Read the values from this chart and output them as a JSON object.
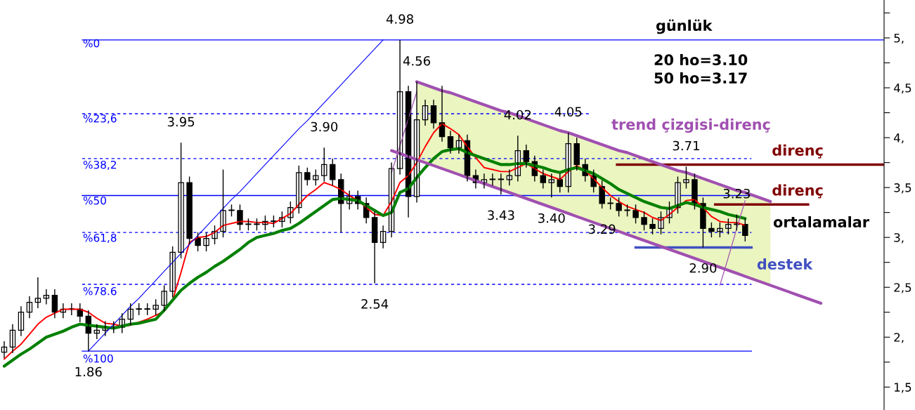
{
  "chart_data": {
    "type": "candlestick",
    "title": "günlük",
    "categories": [
      null,
      null,
      null,
      null,
      null,
      null,
      null,
      null,
      null,
      null,
      null,
      null,
      null,
      null,
      null,
      null,
      null,
      null,
      null,
      null,
      null,
      null,
      null,
      null,
      null,
      null,
      null,
      null,
      null,
      null,
      null,
      null,
      null,
      null,
      null,
      null,
      null,
      null,
      null,
      null,
      null,
      null,
      null,
      null,
      null,
      null,
      null,
      null,
      null,
      null,
      null,
      null,
      null,
      null,
      null,
      null,
      null,
      null,
      null,
      null,
      null,
      null,
      null,
      null,
      null,
      null,
      null,
      null,
      null,
      null,
      null,
      null,
      null,
      null,
      null,
      null,
      null,
      null,
      null,
      null,
      null,
      null,
      null,
      null,
      null,
      null,
      null,
      null,
      null,
      null,
      null,
      null,
      null,
      null,
      null,
      null,
      null,
      null,
      null,
      null,
      null,
      null,
      null,
      null,
      null
    ],
    "ohlc": [
      [
        1.85,
        1.96,
        1.79,
        1.9
      ],
      [
        1.9,
        2.13,
        1.84,
        2.07
      ],
      [
        2.07,
        2.31,
        2.01,
        2.25
      ],
      [
        2.25,
        2.41,
        2.19,
        2.35
      ],
      [
        2.35,
        2.6,
        2.29,
        2.39
      ],
      [
        2.39,
        2.48,
        2.33,
        2.42
      ],
      [
        2.42,
        2.48,
        2.19,
        2.25
      ],
      [
        2.25,
        2.34,
        2.19,
        2.28
      ],
      [
        2.28,
        2.34,
        2.22,
        2.28
      ],
      [
        2.28,
        2.34,
        2.15,
        2.21
      ],
      [
        2.21,
        2.27,
        1.86,
        2.04
      ],
      [
        2.04,
        2.13,
        1.98,
        2.07
      ],
      [
        2.07,
        2.16,
        2.01,
        2.1
      ],
      [
        2.1,
        2.16,
        2.04,
        2.1
      ],
      [
        2.1,
        2.24,
        2.04,
        2.18
      ],
      [
        2.18,
        2.34,
        2.12,
        2.28
      ],
      [
        2.28,
        2.34,
        2.22,
        2.28
      ],
      [
        2.28,
        2.34,
        2.22,
        2.28
      ],
      [
        2.28,
        2.38,
        2.22,
        2.32
      ],
      [
        2.32,
        2.52,
        2.26,
        2.46
      ],
      [
        2.46,
        2.91,
        2.4,
        2.85
      ],
      [
        2.85,
        3.95,
        2.79,
        3.55
      ],
      [
        3.55,
        3.61,
        2.93,
        2.99
      ],
      [
        2.99,
        3.05,
        2.86,
        2.92
      ],
      [
        2.92,
        3.05,
        2.86,
        2.99
      ],
      [
        2.99,
        3.12,
        2.93,
        3.06
      ],
      [
        3.06,
        3.68,
        3.0,
        3.27
      ],
      [
        3.27,
        3.33,
        3.21,
        3.27
      ],
      [
        3.27,
        3.33,
        3.07,
        3.13
      ],
      [
        3.13,
        3.19,
        3.07,
        3.13
      ],
      [
        3.13,
        3.19,
        3.07,
        3.13
      ],
      [
        3.13,
        3.22,
        3.07,
        3.16
      ],
      [
        3.16,
        3.22,
        3.1,
        3.16
      ],
      [
        3.16,
        3.26,
        3.1,
        3.2
      ],
      [
        3.2,
        3.36,
        3.14,
        3.3
      ],
      [
        3.3,
        3.72,
        3.24,
        3.65
      ],
      [
        3.65,
        3.7,
        3.52,
        3.58
      ],
      [
        3.58,
        3.68,
        3.52,
        3.62
      ],
      [
        3.62,
        3.9,
        3.56,
        3.73
      ],
      [
        3.73,
        3.79,
        3.52,
        3.58
      ],
      [
        3.58,
        3.64,
        3.05,
        3.34
      ],
      [
        3.34,
        3.47,
        3.28,
        3.41
      ],
      [
        3.41,
        3.47,
        3.28,
        3.34
      ],
      [
        3.34,
        3.4,
        3.14,
        3.2
      ],
      [
        3.2,
        3.26,
        2.54,
        2.95
      ],
      [
        2.95,
        3.12,
        2.89,
        3.06
      ],
      [
        3.06,
        3.75,
        3.0,
        3.69
      ],
      [
        3.69,
        4.98,
        3.63,
        4.46
      ],
      [
        4.46,
        4.52,
        3.2,
        3.41
      ],
      [
        3.41,
        4.56,
        3.35,
        4.18
      ],
      [
        4.18,
        4.38,
        4.12,
        4.32
      ],
      [
        4.32,
        4.38,
        4.09,
        4.15
      ],
      [
        4.15,
        4.52,
        3.96,
        4.01
      ],
      [
        4.01,
        4.07,
        3.84,
        3.9
      ],
      [
        3.9,
        4.03,
        3.84,
        3.97
      ],
      [
        3.97,
        4.03,
        3.56,
        3.62
      ],
      [
        3.62,
        3.68,
        3.49,
        3.55
      ],
      [
        3.55,
        3.64,
        3.49,
        3.58
      ],
      [
        3.58,
        3.64,
        3.52,
        3.58
      ],
      [
        3.58,
        3.64,
        3.43,
        3.58
      ],
      [
        3.58,
        3.68,
        3.52,
        3.62
      ],
      [
        3.62,
        4.02,
        3.56,
        3.87
      ],
      [
        3.87,
        3.93,
        3.7,
        3.76
      ],
      [
        3.76,
        3.82,
        3.56,
        3.62
      ],
      [
        3.62,
        3.68,
        3.49,
        3.55
      ],
      [
        3.55,
        3.64,
        3.4,
        3.58
      ],
      [
        3.58,
        3.64,
        3.45,
        3.51
      ],
      [
        3.51,
        4.05,
        3.45,
        3.94
      ],
      [
        3.94,
        4.0,
        3.67,
        3.73
      ],
      [
        3.73,
        3.79,
        3.56,
        3.62
      ],
      [
        3.62,
        3.68,
        3.45,
        3.51
      ],
      [
        3.51,
        3.57,
        3.29,
        3.34
      ],
      [
        3.34,
        3.4,
        3.28,
        3.34
      ],
      [
        3.34,
        3.4,
        3.21,
        3.27
      ],
      [
        3.27,
        3.33,
        3.21,
        3.27
      ],
      [
        3.27,
        3.33,
        3.14,
        3.2
      ],
      [
        3.2,
        3.26,
        3.07,
        3.13
      ],
      [
        3.13,
        3.19,
        3.03,
        3.09
      ],
      [
        3.09,
        3.26,
        3.03,
        3.2
      ],
      [
        3.2,
        3.36,
        3.14,
        3.3
      ],
      [
        3.3,
        3.61,
        3.24,
        3.55
      ],
      [
        3.55,
        3.71,
        3.49,
        3.58
      ],
      [
        3.58,
        3.64,
        3.28,
        3.34
      ],
      [
        3.34,
        3.4,
        2.9,
        3.09
      ],
      [
        3.09,
        3.15,
        3.0,
        3.06
      ],
      [
        3.06,
        3.15,
        3.0,
        3.09
      ],
      [
        3.09,
        3.19,
        3.03,
        3.13
      ],
      [
        3.13,
        3.23,
        3.07,
        3.13
      ],
      [
        3.13,
        3.19,
        2.96,
        3.02
      ],
      null,
      null,
      null,
      null,
      null,
      null,
      null,
      null,
      null,
      null,
      null,
      null,
      null,
      null,
      null,
      null
    ],
    "ylim": [
      1.27,
      5.38
    ],
    "yticks": [
      {
        "value": 1.5,
        "label": "1,5"
      },
      {
        "value": 1.75,
        "label": null
      },
      {
        "value": 2,
        "label": "2,"
      },
      {
        "value": 2.25,
        "label": null
      },
      {
        "value": 2.5,
        "label": "2,5"
      },
      {
        "value": 2.75,
        "label": null
      },
      {
        "value": 3,
        "label": "3,"
      },
      {
        "value": 3.25,
        "label": null
      },
      {
        "value": 3.5,
        "label": "3,5"
      },
      {
        "value": 3.75,
        "label": null
      },
      {
        "value": 4,
        "label": "4,"
      },
      {
        "value": 4.25,
        "label": null
      },
      {
        "value": 4.5,
        "label": "4,5"
      },
      {
        "value": 4.75,
        "label": null
      },
      {
        "value": 5,
        "label": "5,"
      },
      {
        "value": 5.25,
        "label": null
      }
    ],
    "tick_labels": "y",
    "series": [
      {
        "type": "area",
        "color": "#eaf5c0",
        "values": [
          null,
          null,
          null,
          null,
          null,
          null,
          null,
          null,
          null,
          null,
          null,
          null,
          null,
          null,
          null,
          null,
          null,
          null,
          null,
          null,
          null,
          null,
          null,
          null,
          null,
          null,
          null,
          null,
          null,
          null,
          null,
          null,
          null,
          null,
          null,
          null,
          null,
          null,
          null,
          null,
          null,
          null,
          null,
          null,
          null,
          null,
          null,
          null,
          null,
          4.56,
          4.53,
          4.5,
          4.47,
          4.45,
          4.42,
          4.39,
          4.36,
          4.33,
          4.3,
          4.27,
          4.25,
          4.22,
          4.19,
          4.16,
          4.13,
          4.1,
          4.07,
          4.05,
          4.02,
          3.99,
          3.96,
          3.93,
          3.9,
          3.87,
          3.85,
          3.82,
          3.79,
          3.76,
          3.73,
          3.7,
          3.67,
          3.65,
          3.62,
          3.59,
          3.56,
          3.53,
          3.5,
          3.47,
          3.45,
          3.42,
          3.39,
          3.36,
          null,
          null,
          null,
          null,
          null,
          null,
          null,
          null,
          null,
          null,
          null,
          null,
          null
        ]
      },
      {
        "type": "line",
        "color": "#ff0000",
        "values": [
          1.78,
          1.86,
          1.93,
          2.03,
          2.13,
          2.2,
          2.24,
          2.28,
          2.28,
          2.28,
          2.25,
          2.19,
          2.14,
          2.13,
          2.11,
          2.12,
          2.15,
          2.18,
          2.22,
          2.26,
          2.37,
          2.65,
          2.95,
          3.0,
          3.01,
          3.05,
          3.12,
          3.14,
          3.16,
          3.16,
          3.15,
          3.15,
          3.14,
          3.19,
          3.24,
          3.33,
          3.42,
          3.48,
          3.55,
          3.52,
          3.48,
          3.42,
          3.37,
          3.3,
          3.23,
          3.22,
          3.36,
          3.55,
          3.62,
          3.75,
          3.91,
          4.05,
          4.14,
          4.09,
          4.03,
          3.91,
          3.8,
          3.7,
          3.68,
          3.66,
          3.66,
          3.7,
          3.74,
          3.69,
          3.64,
          3.61,
          3.58,
          3.66,
          3.72,
          3.67,
          3.59,
          3.5,
          3.42,
          3.36,
          3.31,
          3.28,
          3.25,
          3.2,
          3.17,
          3.23,
          3.3,
          3.37,
          3.38,
          3.3,
          3.21,
          3.16,
          3.15,
          3.15,
          3.12,
          null,
          null,
          null,
          null,
          null,
          null,
          null,
          null,
          null,
          null,
          null,
          null,
          null,
          null,
          null,
          null
        ]
      },
      {
        "type": "line",
        "color": "#008000",
        "values": [
          1.71,
          1.77,
          1.83,
          1.88,
          1.94,
          2.0,
          2.03,
          2.06,
          2.1,
          2.13,
          2.12,
          2.11,
          2.1,
          2.09,
          2.11,
          2.13,
          2.14,
          2.16,
          2.18,
          2.27,
          2.37,
          2.47,
          2.54,
          2.6,
          2.65,
          2.71,
          2.76,
          2.82,
          2.88,
          2.95,
          3.0,
          3.02,
          3.04,
          3.07,
          3.09,
          3.14,
          3.2,
          3.26,
          3.32,
          3.38,
          3.39,
          3.38,
          3.37,
          3.32,
          3.27,
          3.22,
          3.25,
          3.45,
          3.49,
          3.6,
          3.7,
          3.79,
          3.86,
          3.88,
          3.89,
          3.85,
          3.82,
          3.79,
          3.76,
          3.73,
          3.73,
          3.74,
          3.74,
          3.72,
          3.7,
          3.67,
          3.65,
          3.68,
          3.7,
          3.67,
          3.64,
          3.59,
          3.54,
          3.48,
          3.44,
          3.4,
          3.36,
          3.33,
          3.3,
          3.29,
          3.32,
          3.35,
          3.33,
          3.3,
          3.28,
          3.26,
          3.23,
          3.21,
          3.19,
          null,
          null,
          null,
          null,
          null,
          null,
          null,
          null,
          null,
          null,
          null,
          null,
          null,
          null,
          null,
          null
        ]
      },
      {
        "type": "line",
        "color": "#a050b0",
        "values": [
          null,
          null,
          null,
          null,
          null,
          null,
          null,
          null,
          null,
          null,
          null,
          null,
          null,
          null,
          null,
          null,
          null,
          null,
          null,
          null,
          null,
          null,
          null,
          null,
          null,
          null,
          null,
          null,
          null,
          null,
          null,
          null,
          null,
          null,
          null,
          null,
          null,
          null,
          null,
          null,
          null,
          null,
          null,
          null,
          null,
          null,
          null,
          null,
          null,
          4.56,
          4.53,
          4.5,
          4.47,
          4.45,
          4.42,
          4.39,
          4.36,
          4.33,
          4.3,
          4.27,
          4.25,
          4.22,
          4.19,
          4.16,
          4.13,
          4.1,
          4.07,
          4.05,
          4.02,
          3.99,
          3.96,
          3.93,
          3.9,
          3.87,
          3.85,
          3.82,
          3.79,
          3.76,
          3.73,
          3.7,
          3.67,
          3.65,
          3.62,
          3.59,
          3.56,
          3.53,
          3.5,
          3.47,
          3.45,
          3.42,
          3.39,
          3.36,
          null,
          null,
          null,
          null,
          null,
          null,
          null,
          null,
          null,
          null,
          null,
          null,
          null
        ]
      },
      {
        "type": "line",
        "color": "#a050b0",
        "values": [
          null,
          null,
          null,
          null,
          null,
          null,
          null,
          null,
          null,
          null,
          null,
          null,
          null,
          null,
          null,
          null,
          null,
          null,
          null,
          null,
          null,
          null,
          null,
          null,
          null,
          null,
          null,
          null,
          null,
          null,
          null,
          null,
          null,
          null,
          null,
          null,
          null,
          null,
          null,
          null,
          null,
          null,
          null,
          null,
          null,
          null,
          3.87,
          3.84,
          3.81,
          3.78,
          3.75,
          3.72,
          3.69,
          3.66,
          3.63,
          3.6,
          3.57,
          3.54,
          3.51,
          3.48,
          3.45,
          3.42,
          3.39,
          3.36,
          3.33,
          3.3,
          3.27,
          3.24,
          3.21,
          3.18,
          3.15,
          3.12,
          3.09,
          3.06,
          3.03,
          3.0,
          2.97,
          2.94,
          2.91,
          2.88,
          2.85,
          2.82,
          2.79,
          2.76,
          2.73,
          2.7,
          2.67,
          2.64,
          2.61,
          2.58,
          2.55,
          2.52,
          2.49,
          2.46,
          2.43,
          2.4,
          2.37,
          2.34,
          null,
          null,
          null,
          null,
          null,
          null,
          null
        ]
      },
      {
        "type": "line",
        "color": "#a050b0",
        "values": [
          null,
          null,
          null,
          null,
          null,
          null,
          null,
          null,
          null,
          null,
          null,
          null,
          null,
          null,
          null,
          null,
          null,
          null,
          null,
          null,
          null,
          null,
          null,
          null,
          null,
          null,
          null,
          null,
          null,
          null,
          null,
          null,
          null,
          null,
          null,
          null,
          null,
          null,
          null,
          null,
          null,
          null,
          null,
          null,
          null,
          null,
          3.65,
          3.92,
          4.19,
          4.46,
          null,
          null,
          null,
          null,
          null,
          null,
          null,
          null,
          null,
          null,
          null,
          null,
          null,
          null,
          null,
          null,
          null,
          null,
          null,
          null,
          null,
          null,
          null,
          null,
          null,
          null,
          null,
          null,
          null,
          null,
          null,
          null,
          null,
          null,
          null,
          null,
          null,
          null,
          null,
          null,
          null,
          null,
          null,
          null,
          null,
          null,
          null,
          null,
          null,
          null,
          null,
          null,
          null,
          null,
          null
        ]
      },
      {
        "type": "line",
        "color": "#a050b0",
        "values": [
          null,
          null,
          null,
          null,
          null,
          null,
          null,
          null,
          null,
          null,
          null,
          null,
          null,
          null,
          null,
          null,
          null,
          null,
          null,
          null,
          null,
          null,
          null,
          null,
          null,
          null,
          null,
          null,
          null,
          null,
          null,
          null,
          null,
          null,
          null,
          null,
          null,
          null,
          null,
          null,
          null,
          null,
          null,
          null,
          null,
          null,
          null,
          null,
          null,
          null,
          null,
          null,
          null,
          null,
          null,
          null,
          null,
          null,
          null,
          null,
          null,
          null,
          null,
          null,
          null,
          null,
          null,
          null,
          null,
          null,
          null,
          null,
          null,
          null,
          null,
          null,
          null,
          null,
          null,
          null,
          null,
          null,
          null,
          null,
          null,
          2.52,
          2.8,
          3.09,
          3.37,
          null,
          null,
          null,
          null,
          null,
          null,
          null,
          null,
          null,
          null,
          null,
          null,
          null,
          null,
          null,
          null
        ]
      },
      {
        "type": "line",
        "color": "#0000ff",
        "values": [
          null,
          null,
          null,
          null,
          null,
          null,
          null,
          null,
          null,
          null,
          1.86,
          1.95,
          2.04,
          2.13,
          2.22,
          2.31,
          2.39,
          2.48,
          2.57,
          2.66,
          2.75,
          2.84,
          2.93,
          3.02,
          3.11,
          3.2,
          3.29,
          3.38,
          3.46,
          3.55,
          3.64,
          3.73,
          3.82,
          3.91,
          4.0,
          4.09,
          4.17,
          4.26,
          4.35,
          4.44,
          4.53,
          4.62,
          4.71,
          4.8,
          4.89,
          4.98,
          null,
          null,
          null,
          null,
          null,
          null,
          null,
          null,
          null,
          null,
          null,
          null,
          null,
          null,
          null,
          null,
          null,
          null,
          null,
          null,
          null,
          null,
          null,
          null,
          null,
          null,
          null,
          null,
          null,
          null,
          null,
          null,
          null,
          null,
          null,
          null,
          null,
          null,
          null,
          null,
          null,
          null,
          null,
          null,
          null,
          null,
          null,
          null,
          null,
          null,
          null,
          null,
          null,
          null,
          null,
          null,
          null,
          null,
          null
        ]
      }
    ],
    "ref_lines": [
      {
        "axis": "y",
        "value": 4.98,
        "color": "#0000ff"
      },
      {
        "axis": "y",
        "value": 4.24,
        "color": "#0000ff",
        "line_style": "dashed"
      },
      {
        "axis": "y",
        "value": 3.79,
        "color": "#0000ff",
        "line_style": "dashed"
      },
      {
        "axis": "y",
        "value": 3.42,
        "color": "#0000ff"
      },
      {
        "axis": "y",
        "value": 3.05,
        "color": "#0000ff",
        "line_style": "dashed"
      },
      {
        "axis": "y",
        "value": 2.53,
        "color": "#0000ff",
        "line_style": "dashed"
      },
      {
        "axis": "y",
        "value": 1.86,
        "color": "#0000ff"
      },
      {
        "axis": "y",
        "value": 3.73,
        "label": "direnç",
        "color": "#800000"
      },
      {
        "axis": "y",
        "value": 3.33,
        "label": "direnç",
        "color": "#800000"
      },
      {
        "axis": "y",
        "value": 2.9,
        "label": "destek",
        "color": "#4050c0"
      }
    ],
    "annotations": [
      "20 ho=3.10",
      "50 ho=3.17",
      "trend çizgisi-direnç",
      "ortalamalar",
      "%0",
      "%23,6",
      "%38,2",
      "%50",
      "%61,8",
      "%78.6",
      "%100",
      {
        "text": "1.86",
        "y": 1.86
      },
      {
        "text": "3.95",
        "y": 3.95
      },
      {
        "text": "3.90",
        "y": 3.9
      },
      {
        "text": "2.54",
        "y": 2.54
      },
      {
        "text": "4.98",
        "y": 4.98
      },
      {
        "text": "4.56",
        "y": 4.56
      },
      {
        "text": "4.02",
        "y": 4.02
      },
      {
        "text": "4.05",
        "y": 4.05
      },
      {
        "text": "3.43",
        "y": 3.43
      },
      {
        "text": "3.40",
        "y": 3.4
      },
      {
        "text": "3.29",
        "y": 3.29
      },
      {
        "text": "3.71",
        "y": 3.71
      },
      {
        "text": "2.90",
        "y": 2.9
      },
      {
        "text": "3.23",
        "y": 3.23
      }
    ]
  }
}
